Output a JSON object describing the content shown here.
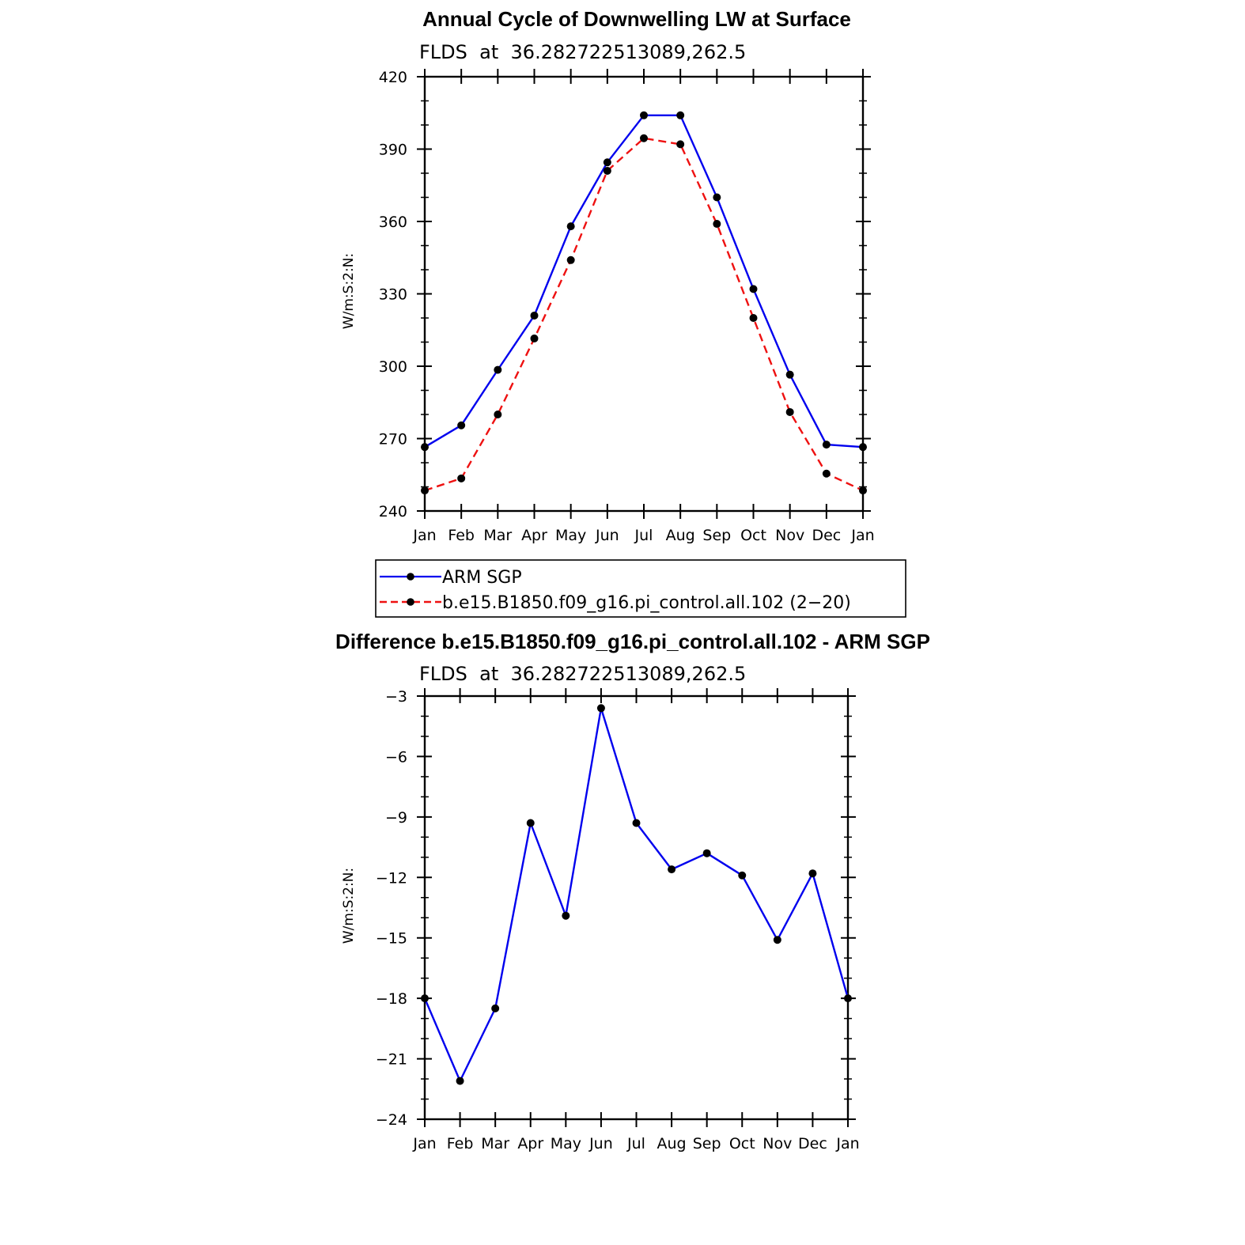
{
  "colors": {
    "obs": "#0000ee",
    "model": "#ee1111",
    "marker": "#000000",
    "axis": "#000000"
  },
  "legend": {
    "entries": [
      {
        "label": "ARM SGP",
        "color": "#0000ee",
        "style": "solid"
      },
      {
        "label": "b.e15.B1850.f09_g16.pi_control.all.102 (2−20)",
        "color": "#ee1111",
        "style": "dashed"
      }
    ]
  },
  "chart_data": [
    {
      "type": "line",
      "title": "Annual Cycle of Downwelling LW at Surface",
      "subtitle": "FLDS  at  36.282722513089,262.5",
      "xlabel": "",
      "ylabel": "W/m:S:2:N:",
      "categories": [
        "Jan",
        "Feb",
        "Mar",
        "Apr",
        "May",
        "Jun",
        "Jul",
        "Aug",
        "Sep",
        "Oct",
        "Nov",
        "Dec",
        "Jan"
      ],
      "ylim": [
        240,
        420
      ],
      "yticks": [
        240,
        270,
        300,
        330,
        360,
        390,
        420
      ],
      "series": [
        {
          "name": "ARM SGP",
          "color": "#0000ee",
          "style": "solid",
          "values": [
            266.5,
            275.5,
            298.5,
            321,
            358,
            384.5,
            404,
            404,
            370,
            332,
            296.5,
            267.5,
            266.5
          ]
        },
        {
          "name": "b.e15.B1850.f09_g16.pi_control.all.102 (2−20)",
          "color": "#ee1111",
          "style": "dashed",
          "values": [
            248.5,
            253.5,
            280,
            311.5,
            344,
            381,
            394.5,
            392,
            359,
            320,
            281,
            255.5,
            248.5
          ]
        }
      ]
    },
    {
      "type": "line",
      "title": "Difference b.e15.B1850.f09_g16.pi_control.all.102 - ARM SGP",
      "subtitle": "FLDS  at  36.282722513089,262.5",
      "xlabel": "",
      "ylabel": "W/m:S:2:N:",
      "categories": [
        "Jan",
        "Feb",
        "Mar",
        "Apr",
        "May",
        "Jun",
        "Jul",
        "Aug",
        "Sep",
        "Oct",
        "Nov",
        "Dec",
        "Jan"
      ],
      "ylim": [
        -24,
        -3
      ],
      "yticks": [
        -24,
        -21,
        -18,
        -15,
        -12,
        -9,
        -6,
        -3
      ],
      "series": [
        {
          "name": "",
          "color": "#0000ee",
          "style": "solid",
          "values": [
            -18,
            -22.1,
            -18.5,
            -9.3,
            -13.9,
            -3.6,
            -9.3,
            -11.6,
            -10.8,
            -11.9,
            -15.1,
            -11.8,
            -18
          ]
        }
      ]
    }
  ]
}
